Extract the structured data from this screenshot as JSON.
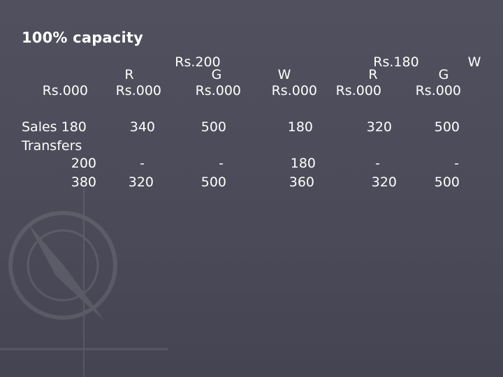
{
  "title": "100% capacity",
  "header": {
    "row1": {
      "c3": "Rs.200",
      "c6": "Rs.180",
      "c7": "W"
    },
    "row2": {
      "c2": "R",
      "c3": "G",
      "c4": "W",
      "c5": "R",
      "c6": "G"
    },
    "row3": {
      "c1": "Rs.000",
      "c2": "Rs.000",
      "c3": "Rs.000",
      "c4": "Rs.000",
      "c5": "Rs.000",
      "c6": "Rs.000"
    }
  },
  "rows": [
    {
      "label": "Sales 180",
      "c2": "340",
      "c3": "500",
      "c4": "180",
      "c5": "320",
      "c6": "500"
    },
    {
      "label": "Transfers"
    },
    {
      "label": "200",
      "c2": "-",
      "c3": "-",
      "c4": "180",
      "c5": "-",
      "c6": "-"
    },
    {
      "label": "380",
      "c2": "320",
      "c3": "500",
      "c4": "360",
      "c5": "320",
      "c6": "500"
    }
  ]
}
